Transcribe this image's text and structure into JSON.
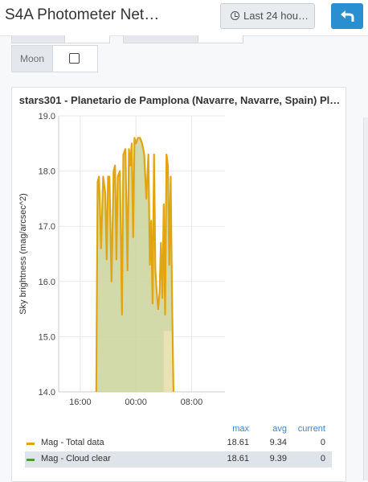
{
  "header": {
    "title": "S4A Photometer Net…",
    "time_range": "Last 24 hou…",
    "back_icon": "reply-arrow-icon"
  },
  "variables": {
    "moon_label": "Moon",
    "moon_checked": false
  },
  "panel": {
    "title": "stars301 - Planetario de Pamplona (Navarre, Navarre, Spain) Pl…"
  },
  "chart_data": {
    "type": "area",
    "ylabel": "Sky brightness (mag/arcsec^2)",
    "xlabel": "",
    "ylim": [
      14.0,
      19.0
    ],
    "yticks": [
      "19.0",
      "18.0",
      "17.0",
      "16.0",
      "15.0",
      "14.0"
    ],
    "x_tick_hours": [
      16,
      24,
      32
    ],
    "xticks": [
      "16:00",
      "00:00",
      "08:00"
    ],
    "grid": true,
    "series": [
      {
        "name": "Mag - Total data",
        "color": "#e0a511",
        "fill": "#cbd39a",
        "x_hours": [
          18.3,
          18.5,
          18.7,
          19.0,
          19.3,
          19.6,
          19.8,
          20.0,
          20.2,
          20.5,
          20.8,
          21.0,
          21.2,
          21.4,
          21.7,
          22.0,
          22.2,
          22.5,
          22.8,
          23.0,
          23.2,
          23.4,
          23.6,
          23.8,
          24.0,
          24.3,
          24.6,
          24.9,
          25.2,
          25.5,
          25.8,
          26.0,
          26.2,
          26.4,
          26.6,
          26.8,
          27.0,
          27.2,
          27.4,
          27.6,
          27.8,
          28.0,
          28.2,
          28.4,
          28.6,
          28.8,
          29.0,
          29.2,
          29.4
        ],
        "values": [
          14.0,
          17.8,
          17.9,
          16.6,
          17.9,
          17.6,
          16.4,
          17.9,
          17.9,
          16.0,
          18.0,
          18.1,
          16.4,
          17.9,
          18.0,
          15.4,
          18.3,
          18.4,
          16.2,
          18.4,
          18.1,
          18.5,
          16.8,
          18.6,
          18.5,
          18.6,
          18.6,
          18.5,
          18.3,
          17.5,
          18.3,
          16.3,
          17.1,
          15.6,
          18.3,
          16.2,
          15.8,
          15.5,
          15.8,
          16.7,
          15.7,
          17.4,
          15.4,
          18.3,
          18.1,
          16.3,
          17.9,
          15.6,
          14.0
        ]
      },
      {
        "name": "Mag - Cloud clear",
        "color": "#4e9a3a",
        "fill": "#ede2b5",
        "values": []
      }
    ],
    "legend_columns": [
      "max",
      "avg",
      "current"
    ],
    "legend_values": [
      {
        "max": "18.61",
        "avg": "9.34",
        "current": "0"
      },
      {
        "max": "18.61",
        "avg": "9.39",
        "current": "0"
      }
    ]
  }
}
